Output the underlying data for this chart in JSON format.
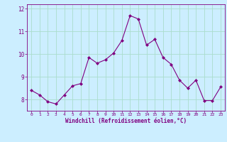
{
  "x": [
    0,
    1,
    2,
    3,
    4,
    5,
    6,
    7,
    8,
    9,
    10,
    11,
    12,
    13,
    14,
    15,
    16,
    17,
    18,
    19,
    20,
    21,
    22,
    23
  ],
  "y": [
    8.4,
    8.2,
    7.9,
    7.8,
    8.2,
    8.6,
    8.7,
    9.85,
    9.6,
    9.75,
    10.05,
    10.6,
    11.7,
    11.55,
    10.4,
    10.65,
    9.85,
    9.55,
    8.85,
    8.5,
    8.85,
    7.95,
    7.95,
    8.55
  ],
  "line_color": "#800080",
  "marker": "D",
  "marker_size": 2,
  "bg_color": "#cceeff",
  "grid_color": "#aaddcc",
  "xlabel": "Windchill (Refroidissement éolien,°C)",
  "xlabel_color": "#800080",
  "tick_color": "#800080",
  "ylim": [
    7.5,
    12.2
  ],
  "xlim": [
    -0.5,
    23.5
  ],
  "yticks": [
    8,
    9,
    10,
    11,
    12
  ],
  "xticks": [
    0,
    1,
    2,
    3,
    4,
    5,
    6,
    7,
    8,
    9,
    10,
    11,
    12,
    13,
    14,
    15,
    16,
    17,
    18,
    19,
    20,
    21,
    22,
    23
  ]
}
